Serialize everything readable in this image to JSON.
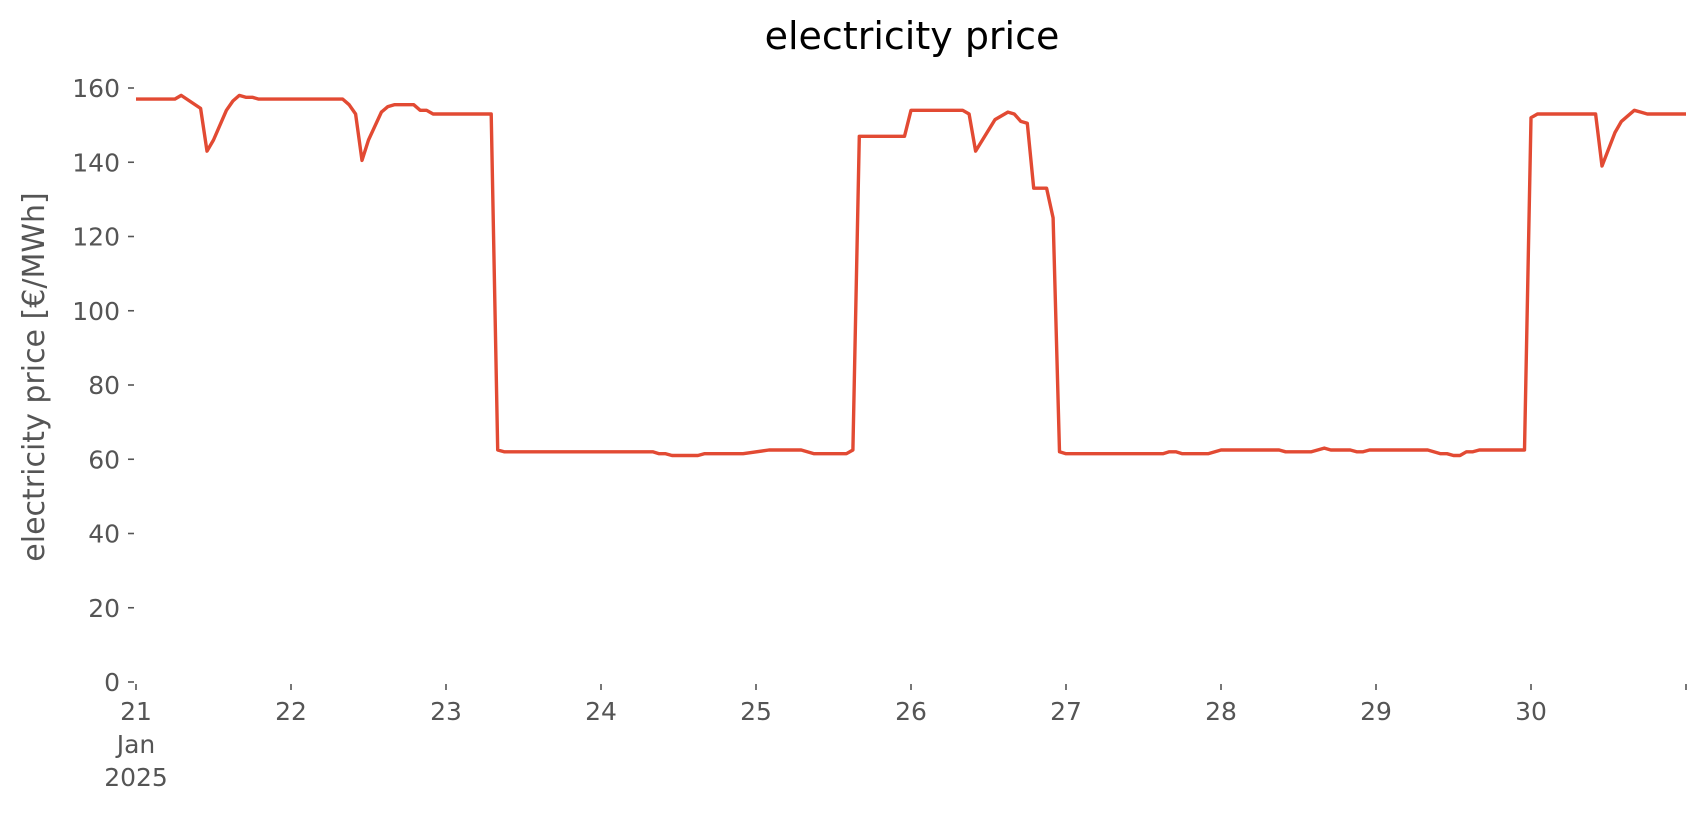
{
  "chart_data": {
    "type": "line",
    "title": "electricity price",
    "xlabel": "",
    "ylabel": "electricity price [€/MWh]",
    "ylim": [
      0,
      160
    ],
    "xlim": [
      "2025-01-21 00:00",
      "2025-01-31 00:00"
    ],
    "grid": false,
    "y_ticks": [
      0,
      20,
      40,
      60,
      80,
      100,
      120,
      140,
      160
    ],
    "y_tick_labels": [
      "0",
      "20",
      "40",
      "60",
      "80",
      "100",
      "120",
      "140",
      "160"
    ],
    "x_ticks": [
      "2025-01-21",
      "2025-01-22",
      "2025-01-23",
      "2025-01-24",
      "2025-01-25",
      "2025-01-26",
      "2025-01-27",
      "2025-01-28",
      "2025-01-29",
      "2025-01-30",
      "2025-01-31"
    ],
    "x_tick_labels": [
      [
        "21",
        "Jan",
        "2025"
      ],
      [
        "22"
      ],
      [
        "23"
      ],
      [
        "24"
      ],
      [
        "25"
      ],
      [
        "26"
      ],
      [
        "27"
      ],
      [
        "28"
      ],
      [
        "29"
      ],
      [
        "30"
      ],
      [
        ""
      ]
    ],
    "series": [
      {
        "color": "#E24A33",
        "points": [
          [
            "2025-01-21 00:00",
            157
          ],
          [
            "2025-01-21 06:00",
            157
          ],
          [
            "2025-01-21 07:00",
            158
          ],
          [
            "2025-01-21 10:00",
            154.5
          ],
          [
            "2025-01-21 11:00",
            143
          ],
          [
            "2025-01-21 12:00",
            146
          ],
          [
            "2025-01-21 14:00",
            154
          ],
          [
            "2025-01-21 15:00",
            156.5
          ],
          [
            "2025-01-21 16:00",
            158
          ],
          [
            "2025-01-21 17:00",
            157.5
          ],
          [
            "2025-01-21 18:00",
            157.5
          ],
          [
            "2025-01-21 19:00",
            157
          ],
          [
            "2025-01-22 04:00",
            157
          ],
          [
            "2025-01-22 08:00",
            157
          ],
          [
            "2025-01-22 09:00",
            155.5
          ],
          [
            "2025-01-22 10:00",
            153
          ],
          [
            "2025-01-22 11:00",
            140.5
          ],
          [
            "2025-01-22 12:00",
            146
          ],
          [
            "2025-01-22 14:00",
            153.5
          ],
          [
            "2025-01-22 15:00",
            155
          ],
          [
            "2025-01-22 16:00",
            155.5
          ],
          [
            "2025-01-22 19:00",
            155.5
          ],
          [
            "2025-01-22 20:00",
            154
          ],
          [
            "2025-01-22 21:00",
            154
          ],
          [
            "2025-01-22 22:00",
            153
          ],
          [
            "2025-01-23 07:00",
            153
          ],
          [
            "2025-01-23 08:00",
            62.5
          ],
          [
            "2025-01-23 09:00",
            62
          ],
          [
            "2025-01-23 18:00",
            62
          ],
          [
            "2025-01-23 20:00",
            62
          ],
          [
            "2025-01-24 00:00",
            62
          ],
          [
            "2025-01-24 08:00",
            62
          ],
          [
            "2025-01-24 09:00",
            61.5
          ],
          [
            "2025-01-24 10:00",
            61.5
          ],
          [
            "2025-01-24 11:00",
            61
          ],
          [
            "2025-01-24 15:00",
            61
          ],
          [
            "2025-01-24 16:00",
            61.5
          ],
          [
            "2025-01-24 22:00",
            61.5
          ],
          [
            "2025-01-25 02:00",
            62.5
          ],
          [
            "2025-01-25 07:00",
            62.5
          ],
          [
            "2025-01-25 09:00",
            61.5
          ],
          [
            "2025-01-25 14:00",
            61.5
          ],
          [
            "2025-01-25 15:00",
            62.5
          ],
          [
            "2025-01-25 16:00",
            147
          ],
          [
            "2025-01-25 23:00",
            147
          ],
          [
            "2025-01-26 00:00",
            154
          ],
          [
            "2025-01-26 08:00",
            154
          ],
          [
            "2025-01-26 09:00",
            153
          ],
          [
            "2025-01-26 10:00",
            143
          ],
          [
            "2025-01-26 13:00",
            151.5
          ],
          [
            "2025-01-26 15:00",
            153.5
          ],
          [
            "2025-01-26 16:00",
            153
          ],
          [
            "2025-01-26 17:00",
            151
          ],
          [
            "2025-01-26 18:00",
            150.5
          ],
          [
            "2025-01-26 19:00",
            133
          ],
          [
            "2025-01-26 21:00",
            133
          ],
          [
            "2025-01-26 22:00",
            125
          ],
          [
            "2025-01-26 23:00",
            62
          ],
          [
            "2025-01-27 00:00",
            61.5
          ],
          [
            "2025-01-27 15:00",
            61.5
          ],
          [
            "2025-01-27 16:00",
            62
          ],
          [
            "2025-01-27 17:00",
            62
          ],
          [
            "2025-01-27 18:00",
            61.5
          ],
          [
            "2025-01-27 22:00",
            61.5
          ],
          [
            "2025-01-28 00:00",
            62.5
          ],
          [
            "2025-01-28 09:00",
            62.5
          ],
          [
            "2025-01-28 10:00",
            62
          ],
          [
            "2025-01-28 14:00",
            62
          ],
          [
            "2025-01-28 16:00",
            63
          ],
          [
            "2025-01-28 17:00",
            62.5
          ],
          [
            "2025-01-28 20:00",
            62.5
          ],
          [
            "2025-01-28 21:00",
            62
          ],
          [
            "2025-01-28 22:00",
            62
          ],
          [
            "2025-01-28 23:00",
            62.5
          ],
          [
            "2025-01-29 08:00",
            62.5
          ],
          [
            "2025-01-29 10:00",
            61.5
          ],
          [
            "2025-01-29 11:00",
            61.5
          ],
          [
            "2025-01-29 12:00",
            61
          ],
          [
            "2025-01-29 13:00",
            61
          ],
          [
            "2025-01-29 14:00",
            62
          ],
          [
            "2025-01-29 15:00",
            62
          ],
          [
            "2025-01-29 16:00",
            62.5
          ],
          [
            "2025-01-29 23:00",
            62.5
          ],
          [
            "2025-01-30 00:00",
            152
          ],
          [
            "2025-01-30 01:00",
            153
          ],
          [
            "2025-01-30 10:00",
            153
          ],
          [
            "2025-01-30 11:00",
            139
          ],
          [
            "2025-01-30 13:00",
            148
          ],
          [
            "2025-01-30 14:00",
            151
          ],
          [
            "2025-01-30 15:00",
            152.5
          ],
          [
            "2025-01-30 16:00",
            154
          ],
          [
            "2025-01-30 17:00",
            153.5
          ],
          [
            "2025-01-30 18:00",
            153
          ],
          [
            "2025-01-31 00:00",
            153
          ]
        ]
      }
    ]
  }
}
